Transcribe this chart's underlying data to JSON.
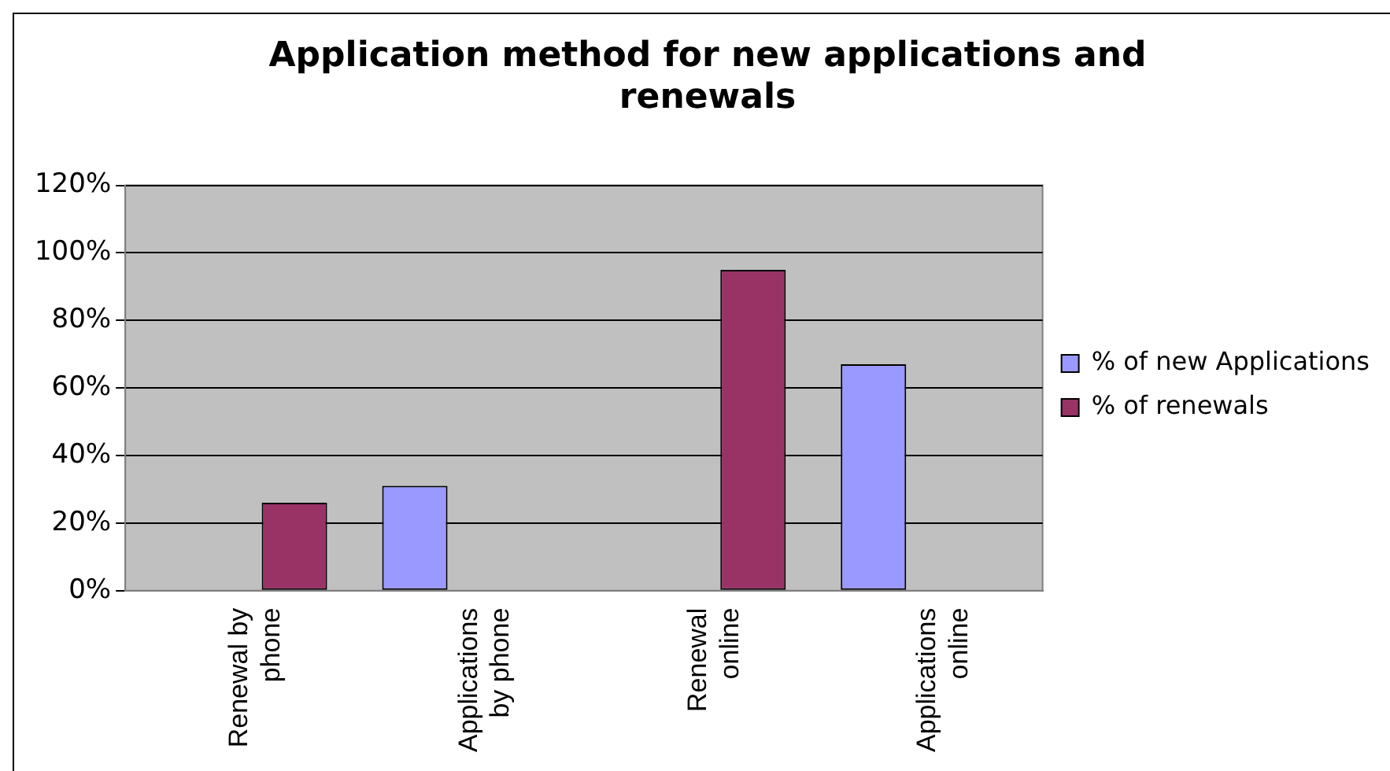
{
  "chart_data": {
    "type": "bar",
    "title": "Application method for new applications and renewals",
    "categories": [
      "Renewal by phone",
      "Applications by phone",
      "Renewal online",
      "Applications online"
    ],
    "series": [
      {
        "name": "% of new Applications",
        "color": "#9999ff",
        "values": [
          null,
          31,
          null,
          67
        ]
      },
      {
        "name": "% of renewals",
        "color": "#993366",
        "values": [
          26,
          null,
          95,
          null
        ]
      }
    ],
    "ylim": [
      0,
      120
    ],
    "yticks": [
      {
        "value": 0,
        "label": "0%"
      },
      {
        "value": 20,
        "label": "20%"
      },
      {
        "value": 40,
        "label": "40%"
      },
      {
        "value": 60,
        "label": "60%"
      },
      {
        "value": 80,
        "label": "80%"
      },
      {
        "value": 100,
        "label": "100%"
      },
      {
        "value": 120,
        "label": "120%"
      }
    ],
    "grid": "y",
    "legend": "right"
  }
}
